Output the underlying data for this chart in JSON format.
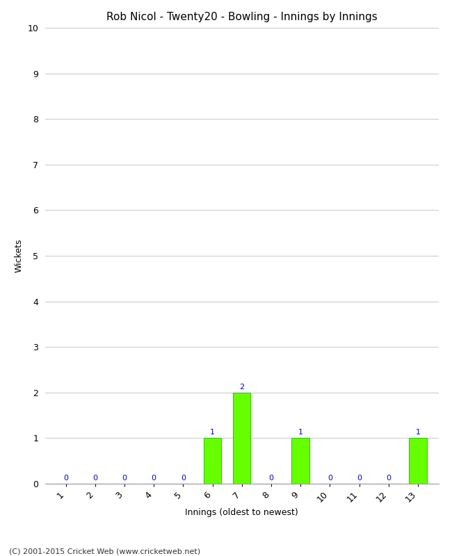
{
  "title": "Rob Nicol - Twenty20 - Bowling - Innings by Innings",
  "xlabel": "Innings (oldest to newest)",
  "ylabel": "Wickets",
  "categories": [
    1,
    2,
    3,
    4,
    5,
    6,
    7,
    8,
    9,
    10,
    11,
    12,
    13
  ],
  "values": [
    0,
    0,
    0,
    0,
    0,
    1,
    2,
    0,
    1,
    0,
    0,
    0,
    1
  ],
  "bar_color": "#66ff00",
  "bar_edge_color": "#33cc00",
  "annotation_color": "#0000cc",
  "ylim": [
    0,
    10
  ],
  "yticks": [
    0,
    1,
    2,
    3,
    4,
    5,
    6,
    7,
    8,
    9,
    10
  ],
  "background_color": "#ffffff",
  "grid_color": "#cccccc",
  "title_fontsize": 11,
  "label_fontsize": 9,
  "tick_fontsize": 9,
  "annotation_fontsize": 8,
  "footer": "(C) 2001-2015 Cricket Web (www.cricketweb.net)",
  "footer_color": "#333333",
  "footer_fontsize": 8
}
